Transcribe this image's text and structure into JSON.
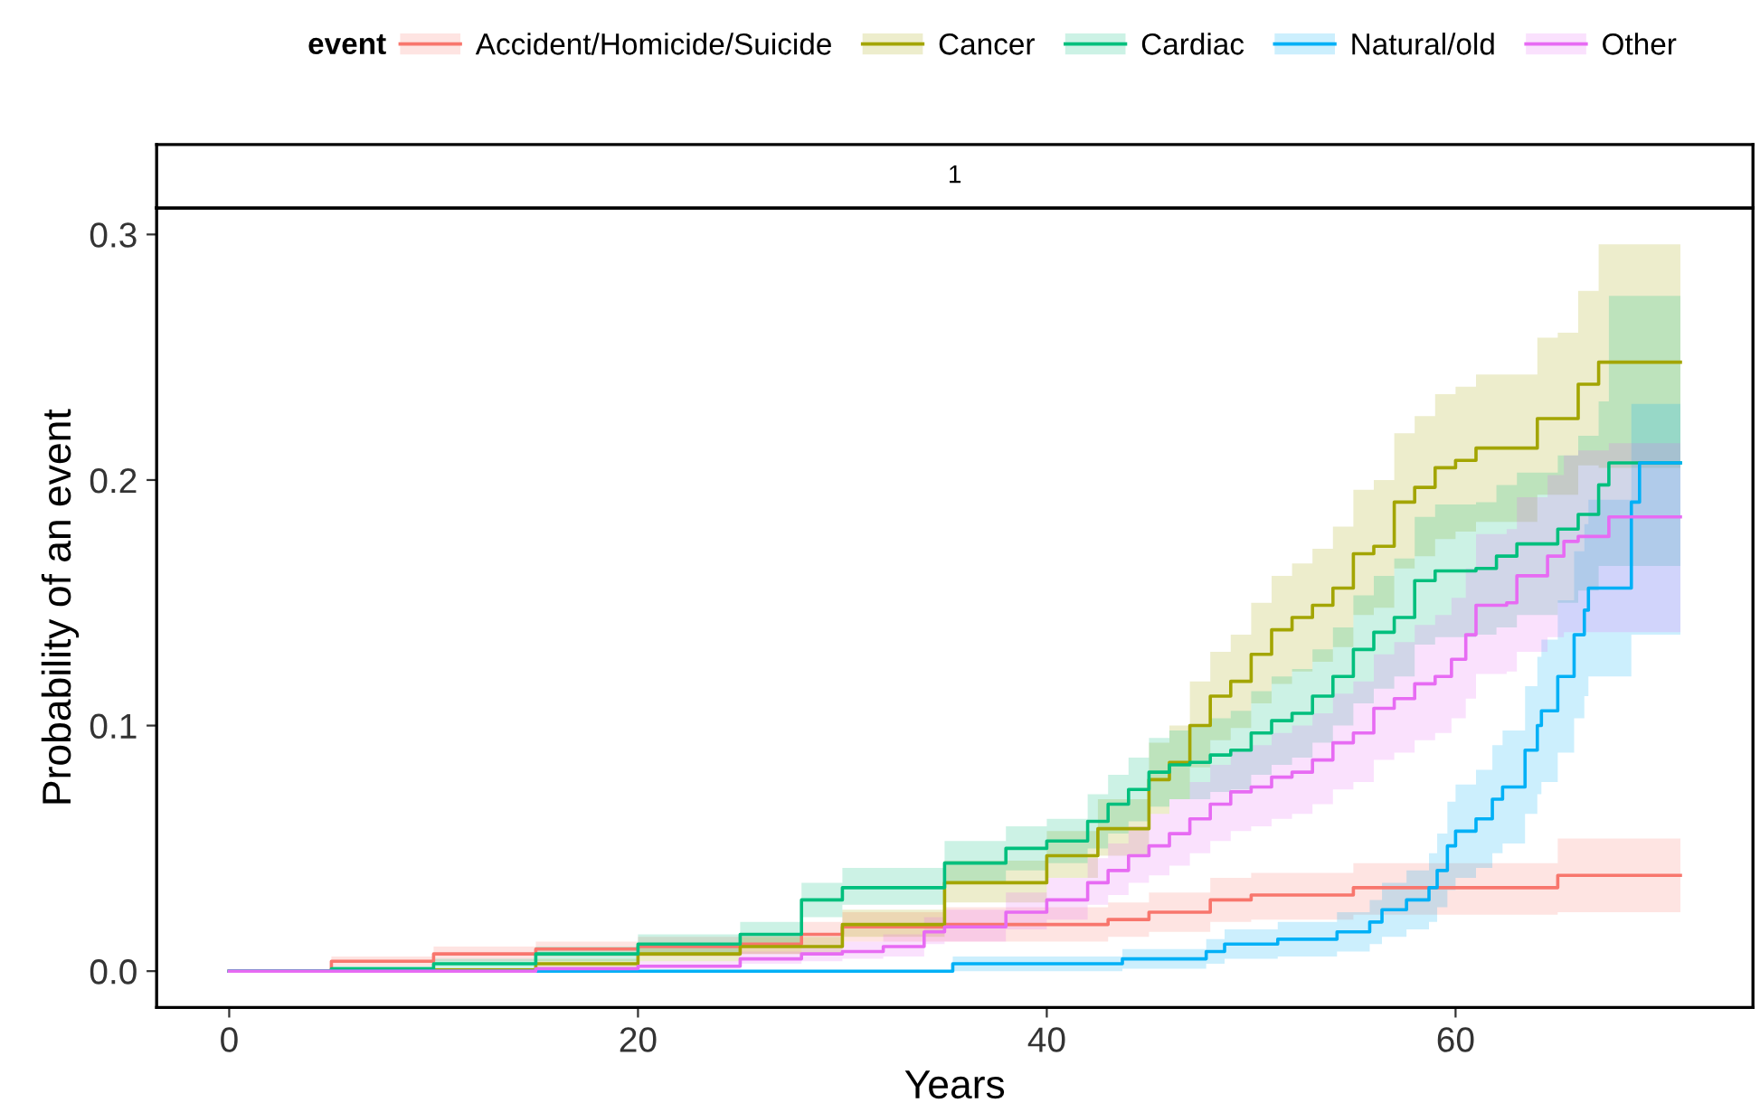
{
  "chart_data": {
    "type": "step",
    "title": "1",
    "xlabel": "Years",
    "ylabel": "Probability of an event",
    "legend_title": "event",
    "legend": "top",
    "grid": false,
    "line_style": "solid",
    "xlim": [
      -3.55,
      74.55
    ],
    "ylim": [
      -0.0148,
      0.3108
    ],
    "xticks": [
      0,
      20,
      40,
      60
    ],
    "yticks": [
      {
        "value": 0,
        "label": "0.0"
      },
      {
        "value": 0.1,
        "label": "0.1"
      },
      {
        "value": 0.2,
        "label": "0.2"
      },
      {
        "value": 0.3,
        "label": "0.3"
      }
    ],
    "series": [
      {
        "name": "Accident/Homicide/Suicide",
        "color": "#f8766d",
        "x": [
          0,
          5,
          10,
          15,
          20,
          25,
          28,
          30,
          35,
          43,
          45,
          48,
          50,
          55,
          65,
          71
        ],
        "values": [
          0,
          0.004,
          0.007,
          0.009,
          0.01,
          0.011,
          0.015,
          0.018,
          0.019,
          0.021,
          0.024,
          0.029,
          0.031,
          0.034,
          0.039,
          0.039
        ],
        "lower": [
          0,
          0.002,
          0.004,
          0.006,
          0.006,
          0.007,
          0.01,
          0.012,
          0.012,
          0.014,
          0.016,
          0.02,
          0.021,
          0.023,
          0.024,
          0.024
        ],
        "upper": [
          0,
          0.006,
          0.01,
          0.012,
          0.014,
          0.015,
          0.02,
          0.024,
          0.026,
          0.028,
          0.032,
          0.038,
          0.04,
          0.044,
          0.054,
          0.054
        ]
      },
      {
        "name": "Cancer",
        "color": "#a3a500",
        "x": [
          0,
          10,
          15,
          20,
          25,
          30,
          35,
          40,
          42.5,
          45,
          46,
          47,
          48,
          49,
          50,
          51,
          52,
          53,
          54,
          55,
          56,
          57,
          58,
          59,
          60,
          61,
          63,
          64,
          65,
          66,
          67,
          71
        ],
        "values": [
          0,
          0.0005,
          0.003,
          0.007,
          0.01,
          0.019,
          0.036,
          0.047,
          0.058,
          0.078,
          0.085,
          0.1,
          0.112,
          0.118,
          0.129,
          0.139,
          0.144,
          0.149,
          0.156,
          0.17,
          0.173,
          0.191,
          0.197,
          0.205,
          0.208,
          0.213,
          0.213,
          0.225,
          0.225,
          0.239,
          0.248,
          0.248
        ],
        "lower": [
          0,
          0,
          0.001,
          0.004,
          0.007,
          0.014,
          0.028,
          0.038,
          0.047,
          0.064,
          0.07,
          0.083,
          0.094,
          0.099,
          0.109,
          0.117,
          0.122,
          0.126,
          0.132,
          0.145,
          0.148,
          0.164,
          0.169,
          0.176,
          0.179,
          0.183,
          0.183,
          0.194,
          0.194,
          0.206,
          0.205,
          0.205
        ],
        "upper": [
          0,
          0.001,
          0.005,
          0.01,
          0.014,
          0.025,
          0.045,
          0.057,
          0.07,
          0.093,
          0.1,
          0.118,
          0.13,
          0.137,
          0.15,
          0.161,
          0.166,
          0.172,
          0.181,
          0.196,
          0.2,
          0.219,
          0.226,
          0.235,
          0.238,
          0.243,
          0.243,
          0.258,
          0.26,
          0.277,
          0.296,
          0.296
        ]
      },
      {
        "name": "Cardiac",
        "color": "#00bf7d",
        "x": [
          0,
          5,
          10,
          15,
          20,
          25,
          28,
          30,
          35,
          38,
          40,
          42,
          43,
          44,
          45,
          46,
          47,
          48,
          49,
          50,
          51,
          52,
          53,
          54,
          55,
          56,
          57,
          58,
          59,
          61,
          62,
          63,
          65,
          66,
          67,
          67.5,
          71
        ],
        "values": [
          0,
          0.001,
          0.003,
          0.007,
          0.011,
          0.015,
          0.029,
          0.034,
          0.044,
          0.05,
          0.053,
          0.061,
          0.068,
          0.074,
          0.081,
          0.084,
          0.085,
          0.088,
          0.09,
          0.097,
          0.102,
          0.105,
          0.112,
          0.12,
          0.131,
          0.138,
          0.144,
          0.159,
          0.163,
          0.164,
          0.169,
          0.174,
          0.18,
          0.186,
          0.198,
          0.207,
          0.207
        ],
        "lower": [
          0,
          0,
          0.001,
          0.004,
          0.007,
          0.011,
          0.022,
          0.027,
          0.036,
          0.041,
          0.044,
          0.05,
          0.056,
          0.061,
          0.067,
          0.07,
          0.07,
          0.073,
          0.074,
          0.08,
          0.084,
          0.087,
          0.093,
          0.1,
          0.109,
          0.115,
          0.12,
          0.133,
          0.136,
          0.137,
          0.14,
          0.145,
          0.15,
          0.155,
          0.165,
          0.165,
          0.165
        ],
        "upper": [
          0,
          0.002,
          0.005,
          0.01,
          0.015,
          0.02,
          0.036,
          0.042,
          0.053,
          0.059,
          0.062,
          0.072,
          0.08,
          0.087,
          0.095,
          0.098,
          0.1,
          0.103,
          0.106,
          0.114,
          0.12,
          0.123,
          0.131,
          0.14,
          0.153,
          0.161,
          0.168,
          0.185,
          0.19,
          0.191,
          0.198,
          0.203,
          0.21,
          0.218,
          0.232,
          0.275,
          0.275
        ]
      },
      {
        "name": "Natural/old",
        "color": "#00b0f6",
        "x": [
          0,
          35.4,
          43.7,
          47.8,
          48.7,
          51.3,
          54.2,
          55.8,
          56.4,
          57.6,
          58.7,
          59.1,
          59.6,
          60,
          61,
          61.8,
          62.3,
          63.4,
          64,
          64.2,
          65,
          65.8,
          66.3,
          66.5,
          68.6,
          69,
          71
        ],
        "values": [
          0,
          0.003,
          0.005,
          0.008,
          0.011,
          0.013,
          0.016,
          0.02,
          0.025,
          0.029,
          0.034,
          0.041,
          0.051,
          0.057,
          0.062,
          0.07,
          0.075,
          0.09,
          0.1,
          0.106,
          0.12,
          0.137,
          0.147,
          0.156,
          0.191,
          0.207,
          0.207
        ],
        "lower": [
          0,
          0,
          0.001,
          0.003,
          0.005,
          0.006,
          0.008,
          0.011,
          0.014,
          0.017,
          0.02,
          0.026,
          0.033,
          0.038,
          0.042,
          0.048,
          0.052,
          0.064,
          0.072,
          0.077,
          0.089,
          0.103,
          0.112,
          0.12,
          0.137,
          0.137,
          0.137
        ],
        "upper": [
          0,
          0.006,
          0.009,
          0.013,
          0.017,
          0.02,
          0.024,
          0.029,
          0.036,
          0.041,
          0.048,
          0.056,
          0.069,
          0.076,
          0.082,
          0.092,
          0.098,
          0.116,
          0.128,
          0.135,
          0.151,
          0.171,
          0.182,
          0.192,
          0.231,
          0.231,
          0.231
        ]
      },
      {
        "name": "Other",
        "color": "#e76bf3",
        "x": [
          0,
          10,
          15,
          20,
          25,
          28,
          30,
          32,
          34,
          35,
          38,
          40,
          42,
          43,
          44,
          45,
          46,
          47,
          48,
          49,
          50,
          51,
          52,
          53,
          54,
          55,
          56,
          57,
          58,
          59,
          59.8,
          60.5,
          61,
          62.5,
          63,
          64.5,
          65.3,
          66,
          67.5,
          71
        ],
        "values": [
          0,
          0,
          0.001,
          0.002,
          0.005,
          0.007,
          0.008,
          0.01,
          0.016,
          0.018,
          0.024,
          0.029,
          0.036,
          0.041,
          0.047,
          0.051,
          0.056,
          0.062,
          0.068,
          0.073,
          0.075,
          0.079,
          0.081,
          0.086,
          0.093,
          0.097,
          0.107,
          0.111,
          0.117,
          0.12,
          0.127,
          0.137,
          0.149,
          0.15,
          0.161,
          0.169,
          0.175,
          0.177,
          0.185,
          0.185
        ],
        "lower": [
          0,
          0,
          0,
          0.001,
          0.003,
          0.004,
          0.005,
          0.006,
          0.011,
          0.012,
          0.017,
          0.021,
          0.027,
          0.031,
          0.036,
          0.039,
          0.043,
          0.048,
          0.053,
          0.057,
          0.059,
          0.062,
          0.064,
          0.068,
          0.074,
          0.077,
          0.086,
          0.089,
          0.094,
          0.097,
          0.103,
          0.111,
          0.121,
          0.122,
          0.13,
          0.136,
          0.138,
          0.138,
          0.138,
          0.138
        ],
        "upper": [
          0,
          0.001,
          0.002,
          0.004,
          0.008,
          0.01,
          0.012,
          0.015,
          0.022,
          0.025,
          0.032,
          0.038,
          0.046,
          0.052,
          0.059,
          0.064,
          0.07,
          0.077,
          0.084,
          0.09,
          0.092,
          0.097,
          0.1,
          0.105,
          0.113,
          0.118,
          0.129,
          0.134,
          0.141,
          0.145,
          0.152,
          0.164,
          0.178,
          0.18,
          0.193,
          0.202,
          0.21,
          0.212,
          0.215,
          0.215
        ]
      }
    ]
  }
}
